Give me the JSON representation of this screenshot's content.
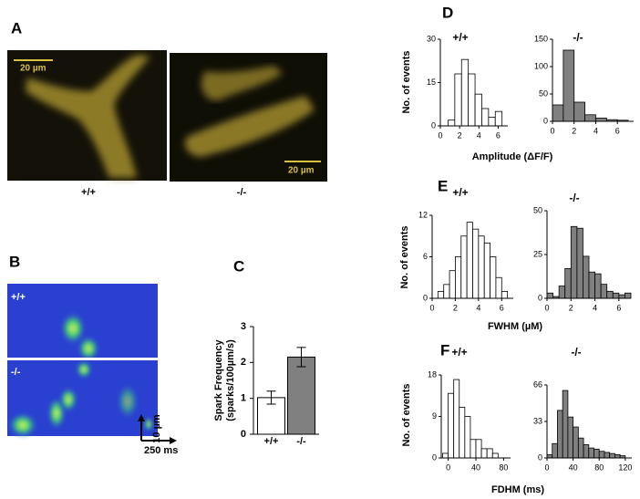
{
  "panel_labels": [
    "A",
    "B",
    "C",
    "D",
    "E",
    "F"
  ],
  "image_labels": {
    "A": {
      "scale_bar_left": "20 µm",
      "scale_bar_right": "20 µm",
      "genotypes": [
        "+/+",
        "-/-"
      ]
    },
    "B": {
      "rows": [
        "+/+",
        "-/-"
      ],
      "scale_vertical": "10 µm",
      "scale_horizontal": "250 ms"
    }
  },
  "chart_data": [
    {
      "type": "bar",
      "categories": [
        "+/+",
        "-/-"
      ],
      "values": [
        1.02,
        2.15
      ],
      "errors": [
        0.18,
        0.27
      ],
      "colors": [
        "#ffffff",
        "#808080"
      ],
      "ylim": [
        0,
        3
      ],
      "yticks": [
        0,
        1,
        2,
        3
      ],
      "y_label": [
        "Spark Frequency",
        "(sparks/100µm/s)"
      ]
    },
    {
      "type": "histogram",
      "title": "+/+",
      "bins": [
        0.8,
        1.5,
        2.2,
        2.9,
        3.6,
        4.3,
        5.0,
        5.7,
        6.4
      ],
      "counts": [
        2,
        18,
        23,
        18,
        11,
        6,
        3,
        5
      ],
      "color": "#ffffff",
      "xlim": [
        0,
        7
      ],
      "xticks": [
        0,
        2,
        4,
        6
      ],
      "ylim": [
        0,
        30
      ],
      "yticks": [
        0,
        15,
        30
      ],
      "y_label": "No. of events",
      "x_label": "Amplitude (ΔF/F)"
    },
    {
      "type": "histogram",
      "title": "-/-",
      "bins": [
        0,
        1,
        2,
        3,
        4,
        5,
        6,
        7
      ],
      "counts": [
        30,
        130,
        35,
        12,
        6,
        3,
        2
      ],
      "color": "#808080",
      "xlim": [
        0,
        7.5
      ],
      "xticks": [
        0,
        2,
        4,
        6
      ],
      "ylim": [
        0,
        150
      ],
      "yticks": [
        0,
        50,
        100,
        150
      ]
    },
    {
      "type": "histogram",
      "title": "+/+",
      "bins": [
        0.5,
        1,
        1.5,
        2,
        2.5,
        3,
        3.5,
        4,
        4.5,
        5,
        5.5,
        6,
        6.5
      ],
      "counts": [
        1,
        2,
        4,
        6,
        9,
        11,
        10,
        9,
        8,
        6,
        3,
        1
      ],
      "color": "#ffffff",
      "xlim": [
        0,
        7
      ],
      "xticks": [
        0,
        2,
        4,
        6
      ],
      "ylim": [
        0,
        12
      ],
      "yticks": [
        0,
        6,
        12
      ],
      "y_label": "No. of events",
      "x_label": "FWHM (µM)"
    },
    {
      "type": "histogram",
      "title": "-/-",
      "bins": [
        0,
        0.5,
        1,
        1.5,
        2,
        2.5,
        3,
        3.5,
        4,
        4.5,
        5,
        5.5,
        6,
        6.5,
        7
      ],
      "counts": [
        3,
        1,
        7,
        17,
        41,
        40,
        24,
        15,
        14,
        8,
        4,
        3,
        2,
        3
      ],
      "color": "#808080",
      "xlim": [
        0,
        7
      ],
      "xticks": [
        0,
        2,
        4,
        6
      ],
      "ylim": [
        0,
        50
      ],
      "yticks": [
        0,
        25,
        50
      ]
    },
    {
      "type": "histogram",
      "title": "+/+",
      "bins": [
        -8,
        0,
        8,
        16,
        24,
        32,
        40,
        48,
        56,
        64,
        72
      ],
      "counts": [
        1,
        14,
        17,
        11,
        9,
        4,
        4,
        2,
        2,
        1
      ],
      "color": "#ffffff",
      "xlim": [
        -10,
        90
      ],
      "xticks": [
        0,
        40,
        80
      ],
      "ylim": [
        0,
        18
      ],
      "yticks": [
        0,
        9,
        18
      ],
      "y_label": "No. of events",
      "x_label": "FDHM (ms)"
    },
    {
      "type": "histogram",
      "title": "-/-",
      "bins": [
        0,
        8,
        16,
        24,
        32,
        40,
        48,
        56,
        64,
        72,
        80,
        88,
        96,
        104,
        112,
        120
      ],
      "counts": [
        3,
        13,
        43,
        61,
        37,
        28,
        18,
        12,
        9,
        8,
        6,
        5,
        4,
        3,
        2
      ],
      "color": "#808080",
      "xlim": [
        0,
        130
      ],
      "xticks": [
        0,
        40,
        80,
        120
      ],
      "ylim": [
        0,
        66
      ],
      "yticks": [
        0,
        33,
        66
      ]
    }
  ]
}
